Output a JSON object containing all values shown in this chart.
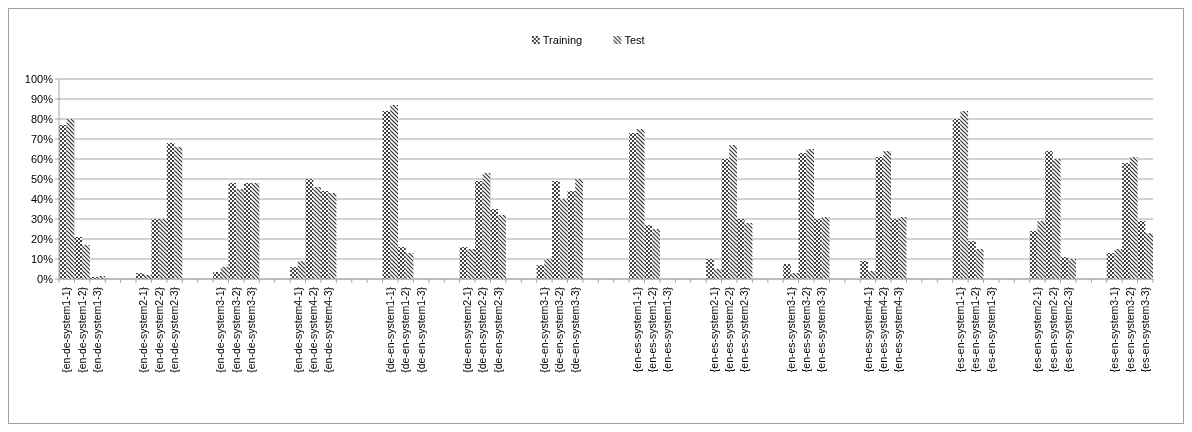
{
  "chart_data": {
    "type": "bar",
    "categories": [
      "{en-de-system1-1}",
      "{en-de-system1-2}",
      "{en-de-system1-3}",
      null,
      null,
      "{en-de-system2-1}",
      "{en-de-system2-2}",
      "{en-de-system2-3}",
      null,
      null,
      "{en-de-system3-1}",
      "{en-de-system3-2}",
      "{en-de-system3-3}",
      null,
      null,
      "{en-de-system4-1}",
      "{en-de-system4-2}",
      "{en-de-system4-3}",
      null,
      null,
      null,
      "{de-en-system1-1}",
      "{de-en-system1-2}",
      "{de-en-system1-3}",
      null,
      null,
      "{de-en-system2-1}",
      "{de-en-system2-2}",
      "{de-en-system2-3}",
      null,
      null,
      "{de-en-system3-1}",
      "{de-en-system3-2}",
      "{de-en-system3-3}",
      null,
      null,
      null,
      "{en-es-system1-1}",
      "{en-es-system1-2}",
      "{en-es-system1-3}",
      null,
      null,
      "{en-es-system2-1}",
      "{en-es-system2-2}",
      "{en-es-system2-3}",
      null,
      null,
      "{en-es-system3-1}",
      "{en-es-system3-2}",
      "{en-es-system3-3}",
      null,
      null,
      "{en-es-system4-1}",
      "{en-es-system4-2}",
      "{en-es-system4-3}",
      null,
      null,
      null,
      "{es-en-system1-1}",
      "{es-en-system1-2}",
      "{es-en-system1-3}",
      null,
      null,
      "{es-en-system2-1}",
      "{es-en-system2-2}",
      "{es-en-system2-3}",
      null,
      null,
      "{es-en-system3-1}",
      "{es-en-system3-2}",
      "{es-en-system3-3}"
    ],
    "series": [
      {
        "name": "Training",
        "color": "#404040",
        "values": [
          77,
          21,
          1,
          null,
          null,
          3,
          30,
          68,
          null,
          null,
          3.5,
          48,
          48,
          null,
          null,
          6,
          50,
          44,
          null,
          null,
          null,
          84,
          16,
          0,
          null,
          null,
          16,
          49,
          35,
          null,
          null,
          7,
          49,
          44,
          null,
          null,
          null,
          73,
          27,
          0,
          null,
          null,
          10,
          60,
          30,
          null,
          null,
          7.5,
          63,
          30,
          null,
          null,
          9,
          61,
          30,
          null,
          null,
          null,
          80,
          19,
          0,
          null,
          null,
          24,
          64,
          11,
          null,
          null,
          13,
          58,
          29
        ]
      },
      {
        "name": "Test",
        "color": "#303030",
        "values": [
          80,
          17,
          1.5,
          null,
          null,
          2,
          30,
          66,
          null,
          null,
          6,
          45,
          48,
          null,
          null,
          9,
          46,
          43,
          null,
          null,
          null,
          87,
          13,
          0,
          null,
          null,
          15,
          53,
          32,
          null,
          null,
          10,
          40,
          50,
          null,
          null,
          null,
          75,
          25,
          0,
          null,
          null,
          5,
          67,
          28,
          null,
          null,
          3,
          65,
          31,
          null,
          null,
          4,
          64,
          31,
          null,
          null,
          null,
          84,
          15,
          0,
          null,
          null,
          29,
          60,
          10,
          null,
          null,
          15,
          61,
          23
        ]
      }
    ],
    "ylim": [
      0,
      100
    ],
    "yticks": [
      {
        "value": 0,
        "label": "0%"
      },
      {
        "value": 10,
        "label": "10%"
      },
      {
        "value": 20,
        "label": "20%"
      },
      {
        "value": 30,
        "label": "30%"
      },
      {
        "value": 40,
        "label": "40%"
      },
      {
        "value": 50,
        "label": "50%"
      },
      {
        "value": 60,
        "label": "60%"
      },
      {
        "value": 70,
        "label": "70%"
      },
      {
        "value": 80,
        "label": "80%"
      },
      {
        "value": 90,
        "label": "90%"
      },
      {
        "value": 100,
        "label": "100%"
      }
    ],
    "grid": "y",
    "legend": "top"
  }
}
